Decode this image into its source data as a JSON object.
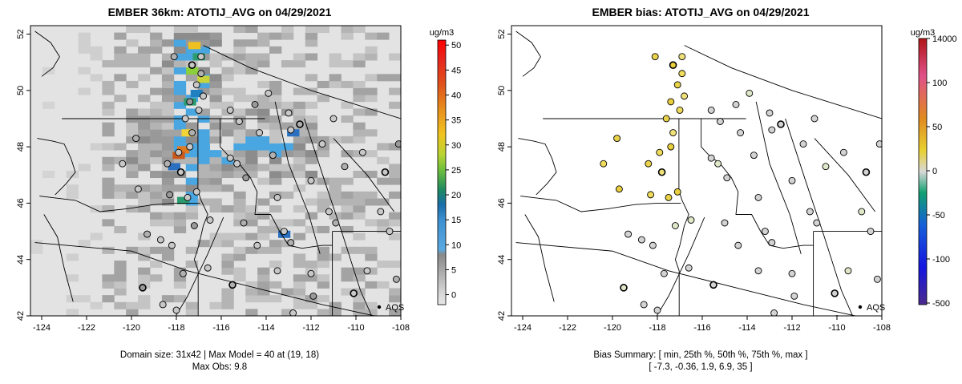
{
  "chart_data": [
    {
      "type": "heatmap",
      "title": "EMBER 36km: ATOTIJ_AVG on 04/29/2021",
      "xlim": [
        -124.5,
        -108
      ],
      "ylim": [
        42,
        52.3
      ],
      "x_ticks": [
        "-124",
        "-122",
        "-120",
        "-118",
        "-116",
        "-114",
        "-112",
        "-110",
        "-108"
      ],
      "y_ticks": [
        "42",
        "44",
        "46",
        "48",
        "50",
        "52"
      ],
      "colorbar": {
        "unit": "ug/m3",
        "range": [
          -2,
          51
        ],
        "ticks": [
          "0",
          "5",
          "10",
          "15",
          "20",
          "25",
          "30",
          "35",
          "40",
          "45",
          "50"
        ]
      },
      "legend_label": "AQS",
      "caption_line1": "Domain size: 31x42 | Max Model = 40 at (19, 18)",
      "caption_line2": "Max Obs: 9.8",
      "series": [
        {
          "values": [
            [
              -119.5,
              43
            ],
            [
              -118.6,
              42.4
            ],
            [
              -118,
              42.2
            ],
            [
              -117.7,
              43.5
            ],
            [
              -118.7,
              44.7
            ],
            [
              -118.2,
              44.5
            ],
            [
              -119.3,
              44.9
            ],
            [
              -116.5,
              45.4
            ],
            [
              -117.5,
              46.2
            ],
            [
              -118.3,
              46.3
            ],
            [
              -117.1,
              46.4
            ],
            [
              -117.8,
              47.1
            ],
            [
              -118.4,
              47.4
            ],
            [
              -117.9,
              47.8
            ],
            [
              -117.4,
              48.0
            ],
            [
              -117.3,
              48.5
            ],
            [
              -117.6,
              49.0
            ],
            [
              -117.0,
              49.3
            ],
            [
              -117.4,
              49.6
            ],
            [
              -116.8,
              49.8
            ],
            [
              -117.1,
              50.2
            ],
            [
              -116.9,
              50.6
            ],
            [
              -117.3,
              50.9
            ],
            [
              -116.9,
              51.2
            ],
            [
              -118.1,
              51.2
            ],
            [
              -115.6,
              49.3
            ],
            [
              -115.2,
              48.9
            ],
            [
              -114.5,
              49.5
            ],
            [
              -113.9,
              49.9
            ],
            [
              -114.3,
              48.5
            ],
            [
              -113.7,
              47.7
            ],
            [
              -112.9,
              48.6
            ],
            [
              -113.0,
              49.2
            ],
            [
              -112.5,
              48.8
            ],
            [
              -115.6,
              47.6
            ],
            [
              -115.3,
              47.4
            ],
            [
              -114.9,
              46.9
            ],
            [
              -113.5,
              46.2
            ],
            [
              -113.2,
              45.0
            ],
            [
              -112.9,
              44.6
            ],
            [
              -111.5,
              48.1
            ],
            [
              -111.0,
              49.0
            ],
            [
              -110.5,
              47.3
            ],
            [
              -109.7,
              47.8
            ],
            [
              -108.7,
              47.1
            ],
            [
              -108.1,
              48.1
            ],
            [
              -112.0,
              46.8
            ],
            [
              -111.2,
              45.7
            ],
            [
              -110.9,
              45.3
            ],
            [
              -108.9,
              45.7
            ],
            [
              -108.5,
              45.0
            ],
            [
              -115.0,
              45.3
            ],
            [
              -113.5,
              43.6
            ],
            [
              -112.0,
              43.5
            ],
            [
              -111.9,
              42.7
            ],
            [
              -110.1,
              42.8
            ],
            [
              -109.5,
              43.6
            ],
            [
              -108.2,
              43.3
            ],
            [
              -110.0,
              41.9
            ],
            [
              -112.8,
              42.1
            ],
            [
              -119.8,
              48.3
            ],
            [
              -120.4,
              47.4
            ],
            [
              -119.7,
              46.5
            ],
            [
              -117.2,
              45.2
            ],
            [
              -116.6,
              43.7
            ],
            [
              -114.4,
              44.5
            ],
            [
              -115.5,
              43.1
            ]
          ]
        }
      ]
    },
    {
      "type": "scatter",
      "title": "EMBER bias: ATOTIJ_AVG on 04/29/2021",
      "xlim": [
        -124.5,
        -108
      ],
      "ylim": [
        42,
        52.3
      ],
      "x_ticks": [
        "-124",
        "-122",
        "-120",
        "-118",
        "-116",
        "-114",
        "-112",
        "-110",
        "-108"
      ],
      "y_ticks": [
        "42",
        "44",
        "46",
        "48",
        "50",
        "52"
      ],
      "colorbar": {
        "unit": "ug/m3",
        "ticks": [
          "-500",
          "-100",
          "-50",
          "0",
          "50",
          "100",
          "14000"
        ]
      },
      "legend_label": "AQS",
      "caption_line1": "Bias Summary: [ min, 25th %, 50th %, 75th %, max ]",
      "caption_line2": "[ -7.3,   -0.36,   1.9,   6.9,   35 ]",
      "bias_values": [
        -7.3,
        -0.36,
        1.9,
        6.9,
        35
      ]
    }
  ]
}
